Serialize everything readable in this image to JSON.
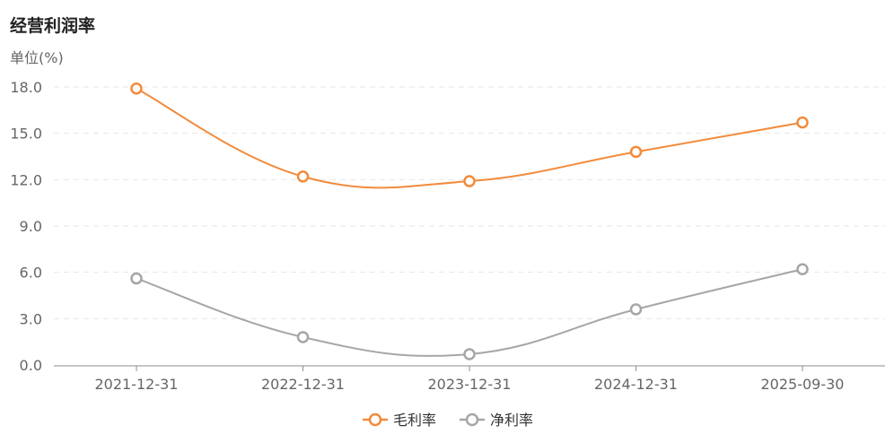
{
  "chart_data": {
    "type": "line",
    "title": "经营利润率",
    "ylabel": "单位(%)",
    "categories": [
      "2021-12-31",
      "2022-12-31",
      "2023-12-31",
      "2024-12-31",
      "2025-09-30"
    ],
    "yticks": [
      "0.0",
      "3.0",
      "6.0",
      "9.0",
      "12.0",
      "15.0",
      "18.0"
    ],
    "ylim": [
      0,
      18
    ],
    "grid": true,
    "legend_position": "bottom-center",
    "series": [
      {
        "name": "毛利率",
        "color": "#f28b3c",
        "values": [
          17.9,
          12.2,
          11.9,
          13.8,
          15.7
        ]
      },
      {
        "name": "净利率",
        "color": "#a6a6a6",
        "values": [
          5.6,
          1.8,
          0.7,
          3.6,
          6.2
        ]
      }
    ]
  }
}
